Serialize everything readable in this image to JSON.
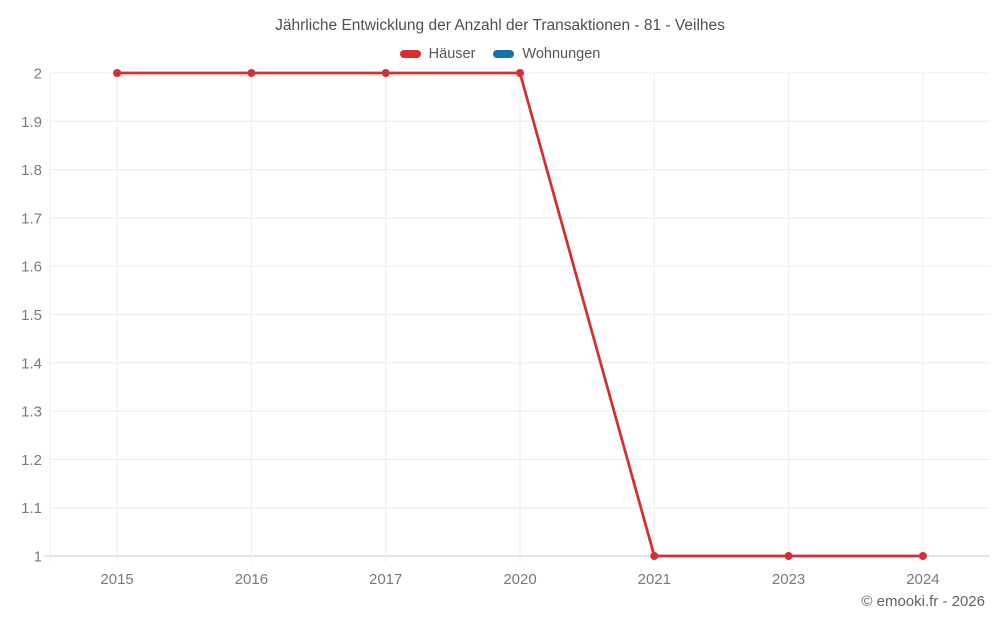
{
  "copyright": "© emooki.fr - 2026",
  "chart_data": {
    "type": "line",
    "title": "Jährliche Entwicklung der Anzahl der Transaktionen - 81 - Veilhes",
    "categories": [
      "2015",
      "2016",
      "2017",
      "2020",
      "2021",
      "2023",
      "2024"
    ],
    "series": [
      {
        "name": "Häuser",
        "color": "#d53031",
        "values": [
          2,
          2,
          2,
          2,
          1,
          1,
          1
        ]
      },
      {
        "name": "Wohnungen",
        "color": "#1572a5",
        "values": []
      }
    ],
    "xlabel": "",
    "ylabel": "",
    "ylim": [
      1,
      2
    ],
    "ytick_step": 0.1,
    "grid": true,
    "legend_position": "top",
    "colors": {
      "gridline": "#ececec",
      "baseline": "#c9c9c9",
      "axis_label": "#7a7a7a"
    }
  }
}
